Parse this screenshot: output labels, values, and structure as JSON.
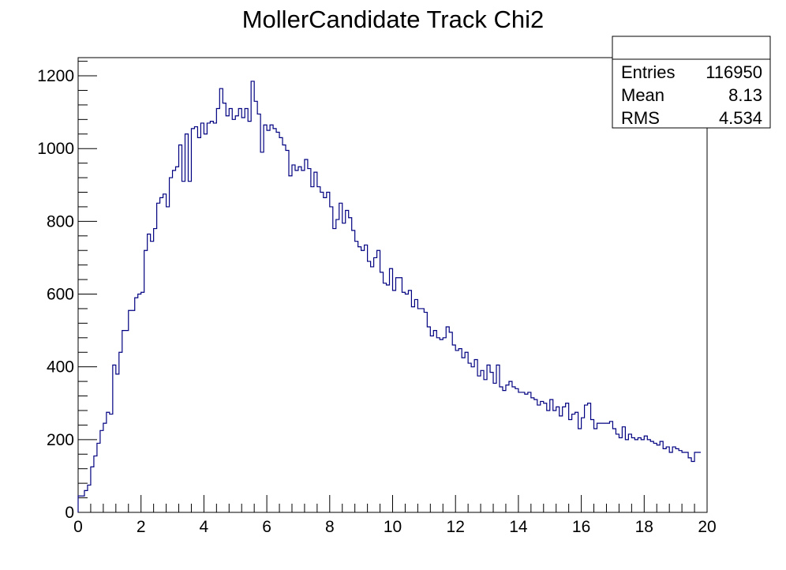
{
  "chart_data": {
    "type": "histogram",
    "title": "MollerCandidate Track Chi2",
    "xlabel": "",
    "ylabel": "",
    "xlim": [
      0,
      20
    ],
    "ylim": [
      0,
      1250
    ],
    "x_ticks": [
      "0",
      "2",
      "4",
      "6",
      "8",
      "10",
      "12",
      "14",
      "16",
      "18",
      "20"
    ],
    "y_ticks": [
      "0",
      "200",
      "400",
      "600",
      "800",
      "1000",
      "1200"
    ],
    "bin_width": 0.1,
    "line_color": "#000080",
    "stats": [
      {
        "label": "Entries",
        "value": "116950"
      },
      {
        "label": "Mean",
        "value": "8.13"
      },
      {
        "label": "RMS",
        "value": "4.534"
      }
    ],
    "values": [
      45,
      45,
      60,
      75,
      125,
      155,
      190,
      225,
      245,
      275,
      270,
      405,
      380,
      440,
      500,
      500,
      555,
      555,
      590,
      600,
      605,
      720,
      765,
      745,
      780,
      850,
      865,
      875,
      840,
      920,
      940,
      950,
      1010,
      910,
      1040,
      910,
      1055,
      1060,
      1030,
      1070,
      1040,
      1070,
      1075,
      1070,
      1110,
      1165,
      1125,
      1090,
      1110,
      1080,
      1090,
      1110,
      1085,
      1110,
      1075,
      1185,
      1130,
      1095,
      990,
      1065,
      1050,
      1065,
      1055,
      1045,
      1030,
      1010,
      995,
      925,
      955,
      940,
      950,
      940,
      970,
      945,
      895,
      935,
      895,
      880,
      865,
      880,
      840,
      780,
      805,
      850,
      795,
      830,
      810,
      775,
      745,
      730,
      720,
      735,
      690,
      675,
      700,
      720,
      660,
      630,
      625,
      670,
      610,
      645,
      645,
      605,
      600,
      610,
      565,
      585,
      560,
      560,
      550,
      510,
      485,
      500,
      480,
      475,
      480,
      510,
      495,
      460,
      445,
      450,
      425,
      440,
      410,
      400,
      420,
      375,
      390,
      365,
      405,
      385,
      355,
      405,
      345,
      335,
      350,
      360,
      345,
      340,
      330,
      330,
      325,
      330,
      315,
      310,
      295,
      305,
      300,
      280,
      310,
      280,
      290,
      265,
      290,
      300,
      255,
      270,
      275,
      230,
      260,
      295,
      300,
      255,
      230,
      245,
      245,
      245,
      245,
      250,
      230,
      215,
      205,
      235,
      200,
      215,
      205,
      200,
      205,
      200,
      210,
      200,
      195,
      190,
      185,
      195,
      175,
      180,
      165,
      180,
      175,
      170,
      165,
      165,
      150,
      140,
      165,
      165
    ]
  }
}
